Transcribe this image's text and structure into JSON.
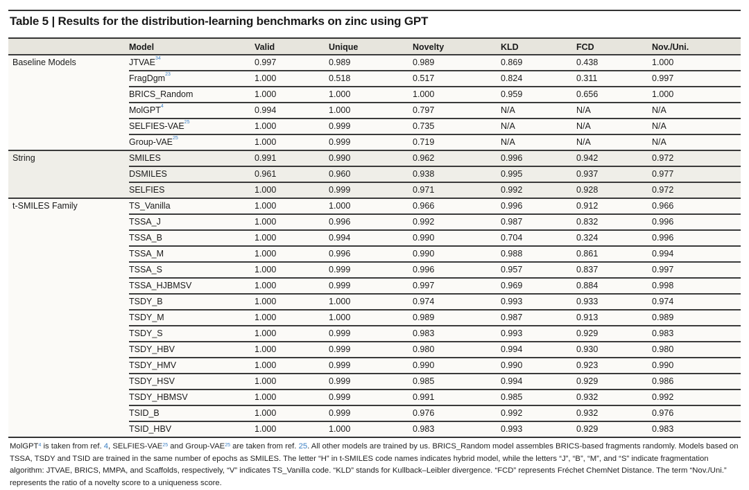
{
  "title": "Table 5 | Results for the distribution-learning benchmarks on zinc using GPT",
  "columns": [
    "",
    "Model",
    "Valid",
    "Unique",
    "Novelty",
    "KLD",
    "FCD",
    "Nov./Uni."
  ],
  "ref_color": "#3b7fc4",
  "sections": [
    {
      "name": "Baseline Models",
      "rows": [
        {
          "model": "JTVAE",
          "ref": "34",
          "values": [
            "0.997",
            "0.989",
            "0.989",
            "0.869",
            "0.438",
            "1.000"
          ]
        },
        {
          "model": "FragDgm",
          "ref": "23",
          "values": [
            "1.000",
            "0.518",
            "0.517",
            "0.824",
            "0.311",
            "0.997"
          ]
        },
        {
          "model": "BRICS_Random",
          "ref": "",
          "values": [
            "1.000",
            "1.000",
            "1.000",
            "0.959",
            "0.656",
            "1.000"
          ]
        },
        {
          "model": "MolGPT",
          "ref": "4",
          "values": [
            "0.994",
            "1.000",
            "0.797",
            "N/A",
            "N/A",
            "N/A"
          ]
        },
        {
          "model": "SELFIES-VAE",
          "ref": "25",
          "values": [
            "1.000",
            "0.999",
            "0.735",
            "N/A",
            "N/A",
            "N/A"
          ]
        },
        {
          "model": "Group-VAE",
          "ref": "25",
          "values": [
            "1.000",
            "0.999",
            "0.719",
            "N/A",
            "N/A",
            "N/A"
          ]
        }
      ]
    },
    {
      "name": "String",
      "rows": [
        {
          "model": "SMILES",
          "ref": "",
          "values": [
            "0.991",
            "0.990",
            "0.962",
            "0.996",
            "0.942",
            "0.972"
          ]
        },
        {
          "model": "DSMILES",
          "ref": "",
          "values": [
            "0.961",
            "0.960",
            "0.938",
            "0.995",
            "0.937",
            "0.977"
          ]
        },
        {
          "model": "SELFIES",
          "ref": "",
          "values": [
            "1.000",
            "0.999",
            "0.971",
            "0.992",
            "0.928",
            "0.972"
          ]
        }
      ]
    },
    {
      "name": "t-SMILES Family",
      "rows": [
        {
          "model": "TS_Vanilla",
          "ref": "",
          "values": [
            "1.000",
            "1.000",
            "0.966",
            "0.996",
            "0.912",
            "0.966"
          ]
        },
        {
          "model": "TSSA_J",
          "ref": "",
          "values": [
            "1.000",
            "0.996",
            "0.992",
            "0.987",
            "0.832",
            "0.996"
          ]
        },
        {
          "model": "TSSA_B",
          "ref": "",
          "values": [
            "1.000",
            "0.994",
            "0.990",
            "0.704",
            "0.324",
            "0.996"
          ]
        },
        {
          "model": "TSSA_M",
          "ref": "",
          "values": [
            "1.000",
            "0.996",
            "0.990",
            "0.988",
            "0.861",
            "0.994"
          ]
        },
        {
          "model": "TSSA_S",
          "ref": "",
          "values": [
            "1.000",
            "0.999",
            "0.996",
            "0.957",
            "0.837",
            "0.997"
          ]
        },
        {
          "model": "TSSA_HJBMSV",
          "ref": "",
          "values": [
            "1.000",
            "0.999",
            "0.997",
            "0.969",
            "0.884",
            "0.998"
          ]
        },
        {
          "model": "TSDY_B",
          "ref": "",
          "values": [
            "1.000",
            "1.000",
            "0.974",
            "0.993",
            "0.933",
            "0.974"
          ]
        },
        {
          "model": "TSDY_M",
          "ref": "",
          "values": [
            "1.000",
            "1.000",
            "0.989",
            "0.987",
            "0.913",
            "0.989"
          ]
        },
        {
          "model": "TSDY_S",
          "ref": "",
          "values": [
            "1.000",
            "0.999",
            "0.983",
            "0.993",
            "0.929",
            "0.983"
          ]
        },
        {
          "model": "TSDY_HBV",
          "ref": "",
          "values": [
            "1.000",
            "0.999",
            "0.980",
            "0.994",
            "0.930",
            "0.980"
          ]
        },
        {
          "model": "TSDY_HMV",
          "ref": "",
          "values": [
            "1.000",
            "0.999",
            "0.990",
            "0.990",
            "0.923",
            "0.990"
          ]
        },
        {
          "model": "TSDY_HSV",
          "ref": "",
          "values": [
            "1.000",
            "0.999",
            "0.985",
            "0.994",
            "0.929",
            "0.986"
          ]
        },
        {
          "model": "TSDY_HBMSV",
          "ref": "",
          "values": [
            "1.000",
            "0.999",
            "0.991",
            "0.985",
            "0.932",
            "0.992"
          ]
        },
        {
          "model": "TSID_B",
          "ref": "",
          "values": [
            "1.000",
            "0.999",
            "0.976",
            "0.992",
            "0.932",
            "0.976"
          ]
        },
        {
          "model": "TSID_HBV",
          "ref": "",
          "values": [
            "1.000",
            "1.000",
            "0.983",
            "0.993",
            "0.929",
            "0.983"
          ]
        }
      ]
    }
  ],
  "footnote": [
    {
      "t": "MolGPT",
      "s": "text"
    },
    {
      "t": "4",
      "s": "sup"
    },
    {
      "t": " is taken from ref. ",
      "s": "text"
    },
    {
      "t": "4",
      "s": "ref"
    },
    {
      "t": ", SELFIES-VAE",
      "s": "text"
    },
    {
      "t": "25",
      "s": "sup"
    },
    {
      "t": " and Group-VAE",
      "s": "text"
    },
    {
      "t": "25",
      "s": "sup"
    },
    {
      "t": " are taken from ref. ",
      "s": "text"
    },
    {
      "t": "25",
      "s": "ref"
    },
    {
      "t": ". All other models are trained by us. BRICS_Random model assembles BRICS-based fragments randomly. Models based on TSSA, TSDY and TSID are trained in the same number of epochs as SMILES. The letter “H” in t-SMILES code names indicates hybrid model, while the letters “J”, “B”, “M”, and “S” indicate fragmentation algorithm: JTVAE, BRICS, MMPA, and Scaffolds, respectively, “V” indicates TS_Vanilla code. “KLD” stands for Kullback–Leibler divergence. “FCD” represents Fréchet ChemNet Distance. The term “Nov./Uni.” represents the ratio of a novelty score to a uniqueness score.",
      "s": "text"
    }
  ]
}
